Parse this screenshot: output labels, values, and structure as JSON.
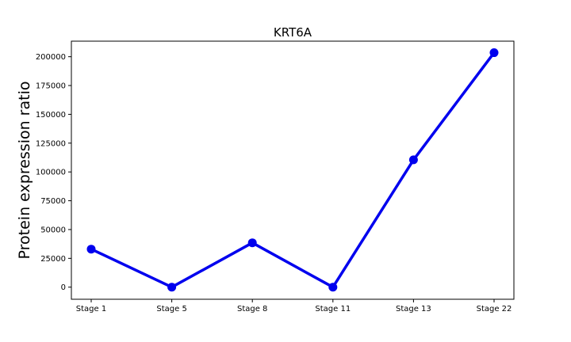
{
  "chart_data": {
    "type": "line",
    "title": "KRT6A",
    "xlabel": "",
    "ylabel": "Protein expression ratio",
    "categories": [
      "Stage 1",
      "Stage 5",
      "Stage 8",
      "Stage 11",
      "Stage 13",
      "Stage 22"
    ],
    "series": [
      {
        "values": [
          33000,
          0,
          38500,
          0,
          110500,
          203500
        ]
      }
    ],
    "ylim": [
      -10500,
      213500
    ],
    "yticks": [
      0,
      25000,
      50000,
      75000,
      100000,
      125000,
      150000,
      175000,
      200000
    ],
    "ytick_labels": [
      "0",
      "25000",
      "50000",
      "75000",
      "100000",
      "125000",
      "150000",
      "175000",
      "200000"
    ],
    "grid": false,
    "colors": {
      "line": "#0000ee",
      "marker": "#0000ee",
      "axes": "#000000"
    }
  }
}
